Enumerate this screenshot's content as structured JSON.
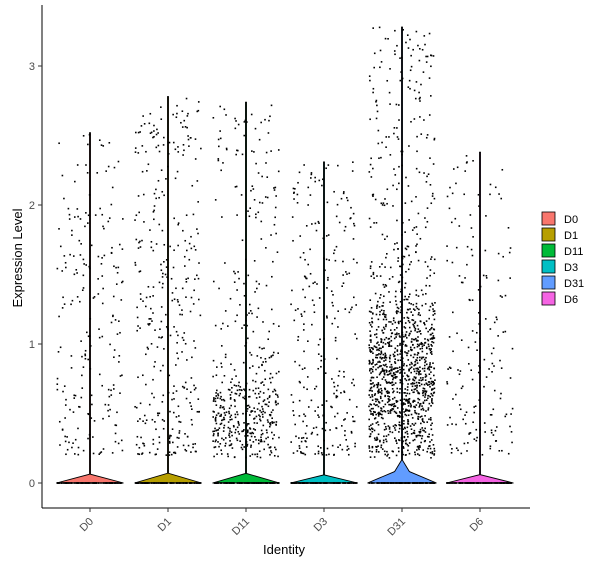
{
  "chart_data": {
    "type": "violin",
    "title": "",
    "xlabel": "Identity",
    "ylabel": "Expression Level",
    "ylim": [
      -0.18,
      3.32
    ],
    "yticks": [
      0,
      1,
      2,
      3
    ],
    "legend_position": "right",
    "categories": [
      "D0",
      "D1",
      "D11",
      "D3",
      "D31",
      "D6"
    ],
    "colors": {
      "D0": "#F8766D",
      "D1": "#B79F00",
      "D11": "#00BA38",
      "D3": "#00BFC4",
      "D31": "#619CFF",
      "D6": "#F564E3"
    },
    "series": [
      {
        "name": "D0",
        "max": 2.52,
        "point_density": 0.55,
        "zero_fraction": 0.88
      },
      {
        "name": "D1",
        "max": 2.78,
        "point_density": 0.9,
        "zero_fraction": 0.85
      },
      {
        "name": "D11",
        "max": 2.74,
        "point_density": 1.3,
        "zero_fraction": 0.82
      },
      {
        "name": "D3",
        "max": 2.31,
        "point_density": 0.7,
        "zero_fraction": 0.87
      },
      {
        "name": "D31",
        "max": 3.28,
        "point_density": 3.4,
        "zero_fraction": 0.45
      },
      {
        "name": "D6",
        "max": 2.38,
        "point_density": 0.45,
        "zero_fraction": 0.9
      }
    ]
  }
}
